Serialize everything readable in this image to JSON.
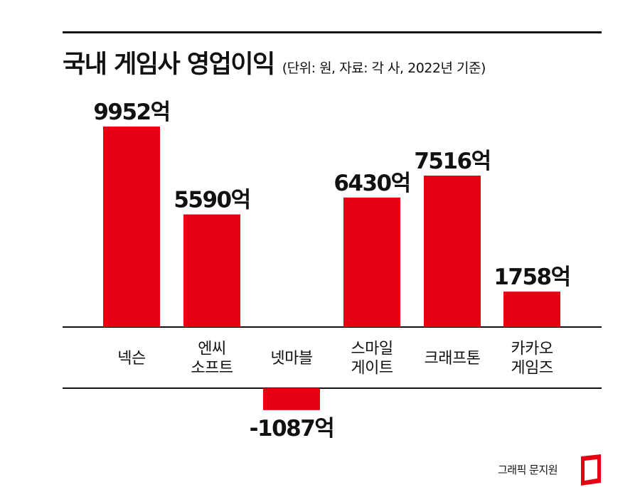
{
  "title": "국내 게임사 영업이익",
  "subtitle": "(단위: 원, 자료: 각 사, 2022년 기준)",
  "source": "그래픽 문지원",
  "colors": {
    "bar": "#e50012",
    "text": "#111111",
    "rule": "#111111"
  },
  "chart_data": {
    "type": "bar",
    "title": "국내 게임사 영업이익",
    "unit": "억",
    "categories": [
      "넥슨",
      "엔씨 소프트",
      "넷마블",
      "스마일 게이트",
      "크래프톤",
      "카카오 게임즈"
    ],
    "category_lines": [
      [
        "넥슨"
      ],
      [
        "엔씨",
        "소프트"
      ],
      [
        "넷마블"
      ],
      [
        "스마일",
        "게이트"
      ],
      [
        "크래프톤"
      ],
      [
        "카카오",
        "게임즈"
      ]
    ],
    "values": [
      9952,
      5590,
      -1087,
      6430,
      7516,
      1758
    ],
    "value_labels": [
      "9952억",
      "5590억",
      "-1087억",
      "6430억",
      "7516억",
      "1758억"
    ],
    "ylim": [
      -1087,
      9952
    ],
    "grid": false,
    "legend": "none"
  }
}
